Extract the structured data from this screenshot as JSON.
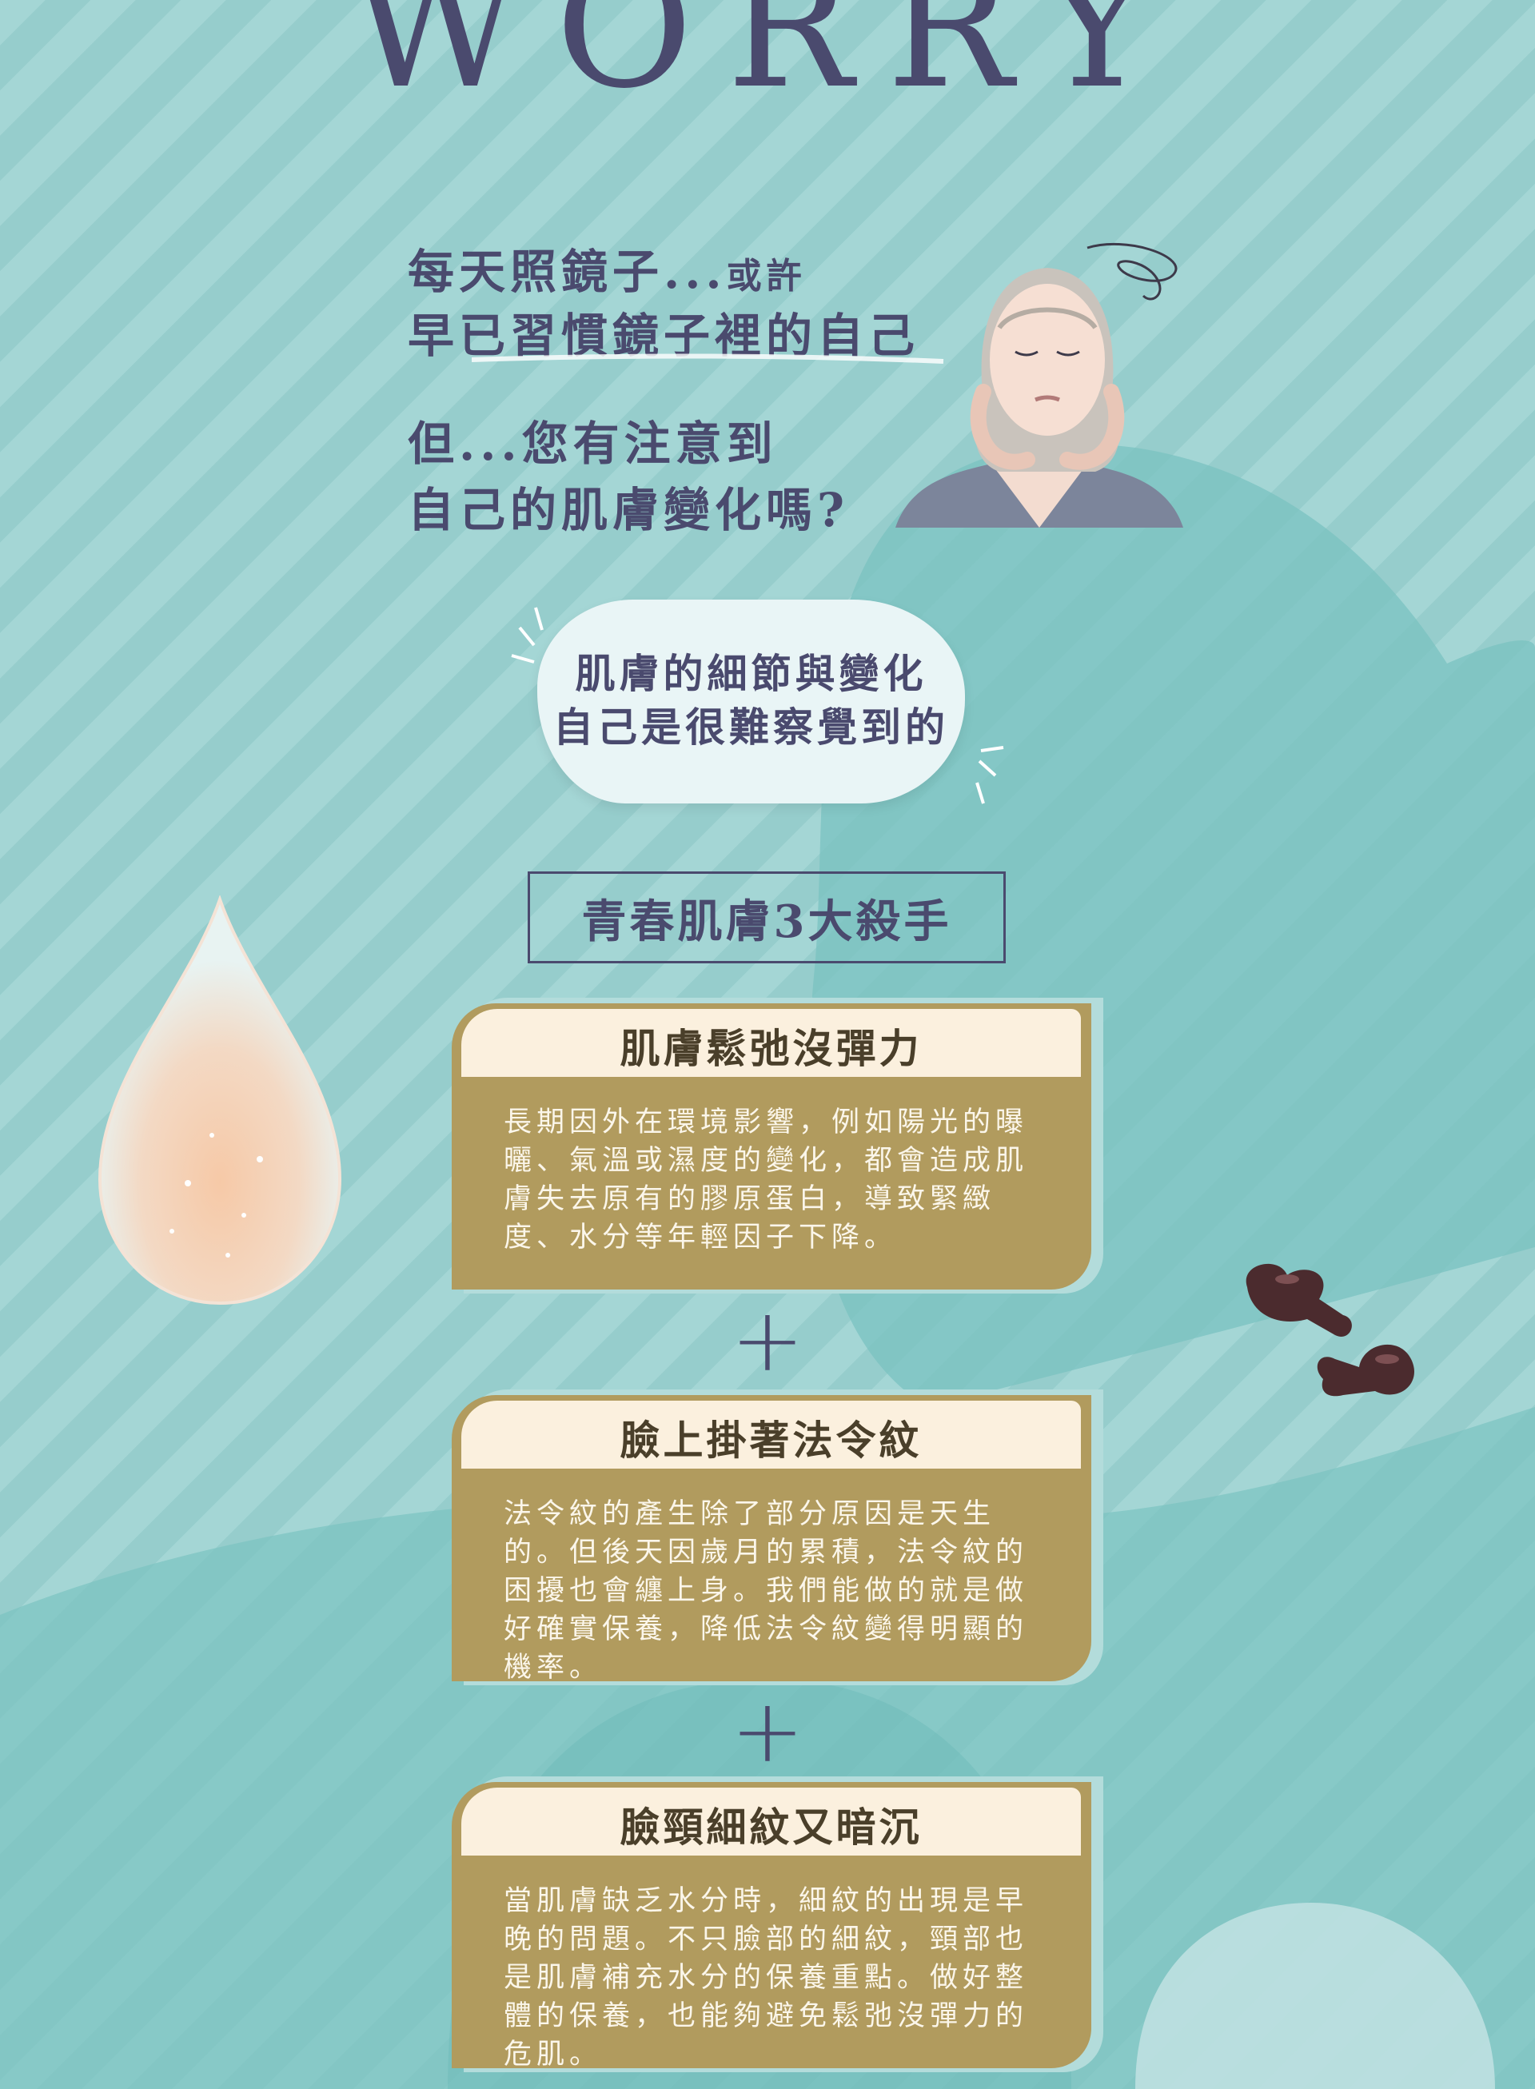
{
  "header": {
    "title": "WORRY"
  },
  "intro": {
    "line1_main": "每天照鏡子...",
    "line1_small": "或許",
    "line2": "早已習慣鏡子裡的自己",
    "line3": "但...您有注意到",
    "line4": "自己的肌膚變化嗎?"
  },
  "bubble": {
    "line1": "肌膚的細節與變化",
    "line2": "自己是很難察覺到的"
  },
  "killers": {
    "title": "青春肌膚3大殺手",
    "items": [
      {
        "title": "肌膚鬆弛沒彈力",
        "body": "長期因外在環境影響，例如陽光的曝曬、氣溫或濕度的變化，都會造成肌膚失去原有的膠原蛋白，導致緊緻度、水分等年輕因子下降。"
      },
      {
        "title": "臉上掛著法令紋",
        "body": "法令紋的產生除了部分原因是天生的。但後天因歲月的累積，法令紋的困擾也會纏上身。我們能做的就是做好確實保養，降低法令紋變得明顯的機率。"
      },
      {
        "title": "臉頸細紋又暗沉",
        "body": "當肌膚缺乏水分時，細紋的出現是早晚的問題。不只臉部的細紋，頸部也是肌膚補充水分的保養重點。做好整體的保養，也能夠避免鬆弛沒彈力的危肌。"
      }
    ],
    "plus": "+"
  },
  "icons": {
    "woman": "worried-woman-illustration",
    "drop": "serum-drop-illustration",
    "capsules": "capsules-illustration"
  },
  "colors": {
    "background": "#9fd3d2",
    "text_navy": "#4a4a6e",
    "card_gold": "#b19b5e",
    "card_header": "#fbf0de"
  }
}
